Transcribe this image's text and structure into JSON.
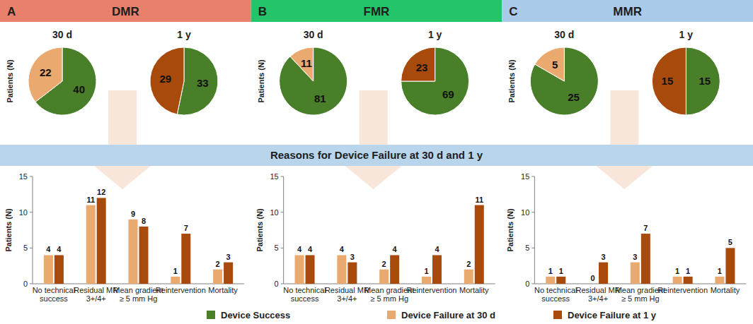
{
  "figure": {
    "banner": "Reasons for Device Failure at 30 d and 1 y",
    "panels": [
      {
        "letter": "A",
        "label": "DMR",
        "color": "#e8806c"
      },
      {
        "letter": "B",
        "label": "FMR",
        "color": "#23c46a"
      },
      {
        "letter": "C",
        "label": "MMR",
        "color": "#a9cbe9"
      }
    ]
  },
  "chart_data": [
    {
      "type": "pie",
      "title": "30 d",
      "ylabel": "Patients (N)",
      "categories": [
        "Device Success",
        "Device Failure at 30 d"
      ],
      "values": [
        40,
        22
      ],
      "colors": [
        "#4a7f2a",
        "#e9a96f"
      ],
      "data_labels": true,
      "legend": "bottom"
    },
    {
      "type": "pie",
      "title": "1 y",
      "categories": [
        "Device Success",
        "Device Failure at 1 y"
      ],
      "values": [
        33,
        29
      ],
      "colors": [
        "#4a7f2a",
        "#a84a0c"
      ],
      "data_labels": true
    },
    {
      "type": "bar",
      "ylabel": "Patients (N)",
      "categories": [
        "No technical success",
        "Residual MR 3+/4+",
        "Mean gradient ≥ 5 mm Hg",
        "Reintervention",
        "Mortality"
      ],
      "series": [
        {
          "name": "Device Failure at 30 d",
          "color": "#e9a96f",
          "values": [
            4,
            11,
            9,
            1,
            2
          ]
        },
        {
          "name": "Device Failure at 1 y",
          "color": "#a84a0c",
          "values": [
            4,
            12,
            8,
            7,
            3
          ]
        }
      ],
      "ylim": [
        0,
        15
      ],
      "yticks": [
        0,
        5,
        10,
        15
      ],
      "grid": false,
      "data_labels": true
    },
    {
      "type": "pie",
      "title": "30 d",
      "ylabel": "Patients (N)",
      "categories": [
        "Device Success",
        "Device Failure at 30 d"
      ],
      "values": [
        81,
        11
      ],
      "colors": [
        "#4a7f2a",
        "#e9a96f"
      ],
      "data_labels": true
    },
    {
      "type": "pie",
      "title": "1 y",
      "categories": [
        "Device Success",
        "Device Failure at 1 y"
      ],
      "values": [
        69,
        23
      ],
      "colors": [
        "#4a7f2a",
        "#a84a0c"
      ],
      "data_labels": true
    },
    {
      "type": "bar",
      "ylabel": "Patients (N)",
      "categories": [
        "No technical success",
        "Residual MR 3+/4+",
        "Mean gradient ≥ 5 mm Hg",
        "Reintervention",
        "Mortality"
      ],
      "series": [
        {
          "name": "Device Failure at 30 d",
          "color": "#e9a96f",
          "values": [
            4,
            4,
            2,
            1,
            2
          ]
        },
        {
          "name": "Device Failure at 1 y",
          "color": "#a84a0c",
          "values": [
            4,
            3,
            4,
            4,
            11
          ]
        }
      ],
      "ylim": [
        0,
        15
      ],
      "yticks": [
        0,
        5,
        10,
        15
      ],
      "grid": false,
      "data_labels": true
    },
    {
      "type": "pie",
      "title": "30 d",
      "ylabel": "Patients (N)",
      "categories": [
        "Device Success",
        "Device Failure at 30 d"
      ],
      "values": [
        25,
        5
      ],
      "colors": [
        "#4a7f2a",
        "#e9a96f"
      ],
      "data_labels": true
    },
    {
      "type": "pie",
      "title": "1 y",
      "categories": [
        "Device Success",
        "Device Failure at 1 y"
      ],
      "values": [
        15,
        15
      ],
      "colors": [
        "#4a7f2a",
        "#a84a0c"
      ],
      "data_labels": true
    },
    {
      "type": "bar",
      "ylabel": "Patients (N)",
      "categories": [
        "No technical success",
        "Residual MR 3+/4+",
        "Mean gradient ≥ 5 mm Hg",
        "Reintervention",
        "Mortality"
      ],
      "series": [
        {
          "name": "Device Failure at 30 d",
          "color": "#e9a96f",
          "values": [
            1,
            0,
            3,
            1,
            1
          ]
        },
        {
          "name": "Device Failure at 1 y",
          "color": "#a84a0c",
          "values": [
            1,
            3,
            7,
            1,
            5
          ]
        }
      ],
      "ylim": [
        0,
        15
      ],
      "yticks": [
        0,
        5,
        10,
        15
      ],
      "grid": false,
      "data_labels": true
    }
  ]
}
